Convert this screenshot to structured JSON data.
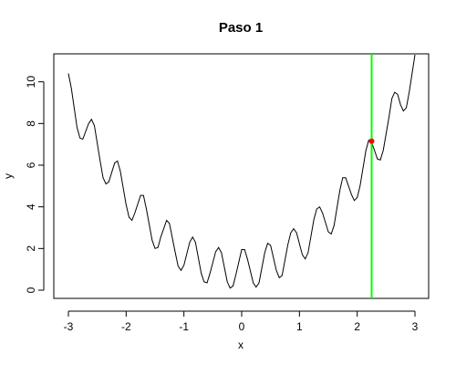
{
  "chart_data": {
    "type": "line",
    "title": "Paso 1",
    "xlabel": "x",
    "ylabel": "y",
    "xlim": [
      -3.0,
      3.0
    ],
    "ylim": [
      0,
      11.3
    ],
    "xticks": [
      -3,
      -2,
      -1,
      0,
      1,
      2,
      3
    ],
    "yticks": [
      0,
      2,
      4,
      6,
      8,
      10
    ],
    "grid": false,
    "series": [
      {
        "color": "#000000",
        "points": [
          [
            -3.0,
            10.4
          ],
          [
            -2.95,
            9.7
          ],
          [
            -2.85,
            7.8
          ],
          [
            -2.8,
            7.3
          ],
          [
            -2.75,
            7.25
          ],
          [
            -2.65,
            8.0
          ],
          [
            -2.6,
            8.2
          ],
          [
            -2.55,
            7.9
          ],
          [
            -2.45,
            6.2
          ],
          [
            -2.4,
            5.4
          ],
          [
            -2.35,
            5.1
          ],
          [
            -2.3,
            5.2
          ],
          [
            -2.2,
            6.1
          ],
          [
            -2.15,
            6.2
          ],
          [
            -2.1,
            5.7
          ],
          [
            -2.0,
            4.1
          ],
          [
            -1.95,
            3.5
          ],
          [
            -1.9,
            3.35
          ],
          [
            -1.85,
            3.7
          ],
          [
            -1.75,
            4.55
          ],
          [
            -1.7,
            4.55
          ],
          [
            -1.65,
            3.9
          ],
          [
            -1.55,
            2.4
          ],
          [
            -1.5,
            2.0
          ],
          [
            -1.45,
            2.05
          ],
          [
            -1.4,
            2.55
          ],
          [
            -1.3,
            3.35
          ],
          [
            -1.25,
            3.2
          ],
          [
            -1.15,
            1.8
          ],
          [
            -1.1,
            1.15
          ],
          [
            -1.05,
            0.95
          ],
          [
            -1.0,
            1.2
          ],
          [
            -0.9,
            2.3
          ],
          [
            -0.85,
            2.55
          ],
          [
            -0.8,
            2.3
          ],
          [
            -0.7,
            0.8
          ],
          [
            -0.65,
            0.4
          ],
          [
            -0.6,
            0.35
          ],
          [
            -0.55,
            0.8
          ],
          [
            -0.45,
            1.85
          ],
          [
            -0.4,
            2.05
          ],
          [
            -0.35,
            1.8
          ],
          [
            -0.25,
            0.4
          ],
          [
            -0.2,
            0.1
          ],
          [
            -0.15,
            0.2
          ],
          [
            -0.1,
            0.75
          ],
          [
            0.0,
            1.95
          ],
          [
            0.05,
            1.95
          ],
          [
            0.1,
            1.5
          ],
          [
            0.2,
            0.35
          ],
          [
            0.25,
            0.15
          ],
          [
            0.3,
            0.35
          ],
          [
            0.4,
            1.8
          ],
          [
            0.45,
            2.25
          ],
          [
            0.5,
            2.15
          ],
          [
            0.6,
            0.95
          ],
          [
            0.65,
            0.6
          ],
          [
            0.7,
            0.7
          ],
          [
            0.8,
            2.2
          ],
          [
            0.85,
            2.75
          ],
          [
            0.9,
            2.95
          ],
          [
            0.95,
            2.75
          ],
          [
            1.05,
            1.7
          ],
          [
            1.1,
            1.5
          ],
          [
            1.15,
            1.8
          ],
          [
            1.25,
            3.4
          ],
          [
            1.3,
            3.9
          ],
          [
            1.35,
            4.0
          ],
          [
            1.4,
            3.7
          ],
          [
            1.5,
            2.8
          ],
          [
            1.55,
            2.7
          ],
          [
            1.6,
            3.1
          ],
          [
            1.7,
            4.8
          ],
          [
            1.75,
            5.4
          ],
          [
            1.8,
            5.4
          ],
          [
            1.9,
            4.6
          ],
          [
            1.95,
            4.3
          ],
          [
            2.0,
            4.45
          ],
          [
            2.05,
            5.0
          ],
          [
            2.15,
            6.7
          ],
          [
            2.2,
            7.2
          ],
          [
            2.25,
            7.1
          ],
          [
            2.3,
            6.7
          ],
          [
            2.35,
            6.3
          ],
          [
            2.4,
            6.25
          ],
          [
            2.45,
            6.7
          ],
          [
            2.55,
            8.3
          ],
          [
            2.6,
            9.2
          ],
          [
            2.65,
            9.5
          ],
          [
            2.7,
            9.4
          ],
          [
            2.75,
            8.9
          ],
          [
            2.8,
            8.6
          ],
          [
            2.85,
            8.75
          ],
          [
            2.9,
            9.5
          ],
          [
            3.0,
            11.3
          ]
        ]
      }
    ],
    "vertical_line": {
      "x": 2.25,
      "color": "#00ff00"
    },
    "marker_point": {
      "x": 2.25,
      "y": 7.15,
      "color": "#ff0000"
    }
  }
}
